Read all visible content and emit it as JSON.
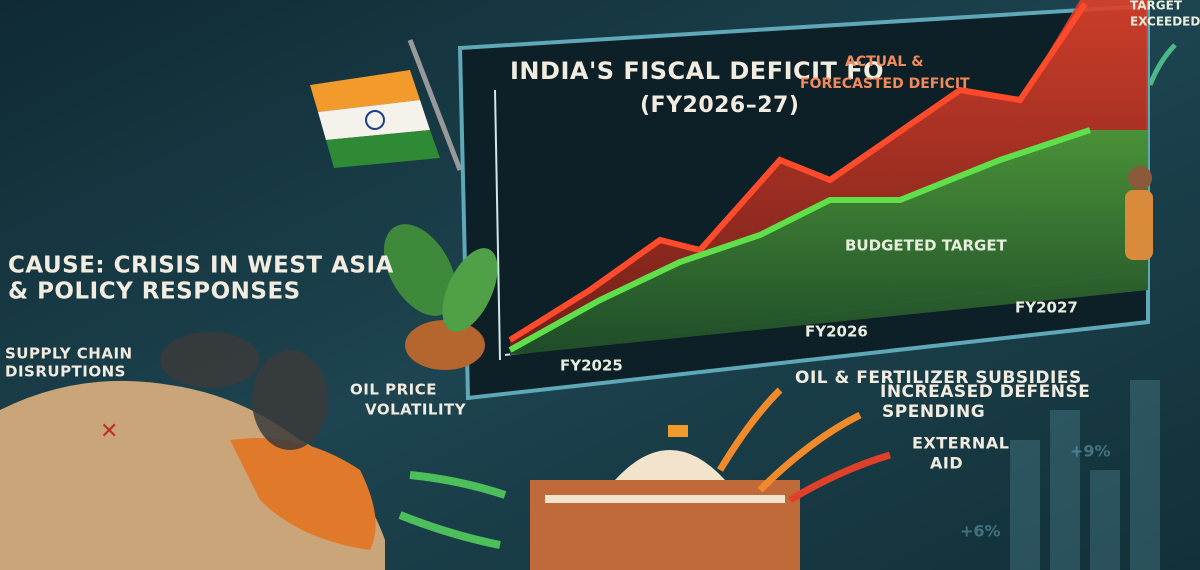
{
  "chart_panel": {
    "title_line1": "INDIA'S FISCAL DEFICIT FO",
    "title_line2": "(FY2026–27)",
    "actual_label_line1": "ACTUAL &",
    "actual_label_line2": "FORECASTED DEFICIT",
    "target_label": "BUDGETED TARGET",
    "exceeded_label_line1": "TARGET",
    "exceeded_label_line2": "EXCEEDED",
    "x_labels": [
      "FY2025",
      "FY2026",
      "FY2027"
    ]
  },
  "cause": {
    "title_line1": "CAUSE: CRISIS IN WEST ASIA",
    "title_line2": "& POLICY RESPONSES",
    "supply_line1": "SUPPLY CHAIN",
    "supply_line2": "DISRUPTIONS",
    "oil_line1": "OIL PRICE",
    "oil_line2": "VOLATILITY"
  },
  "responses": {
    "subsidies": "OIL & FERTILIZER SUBSIDIES",
    "defense_line1": "INCREASED DEFENSE",
    "defense_line2": "SPENDING",
    "aid_line1": "EXTERNAL",
    "aid_line2": "AID"
  },
  "background_labels": [
    "+9%",
    "+6%"
  ]
}
